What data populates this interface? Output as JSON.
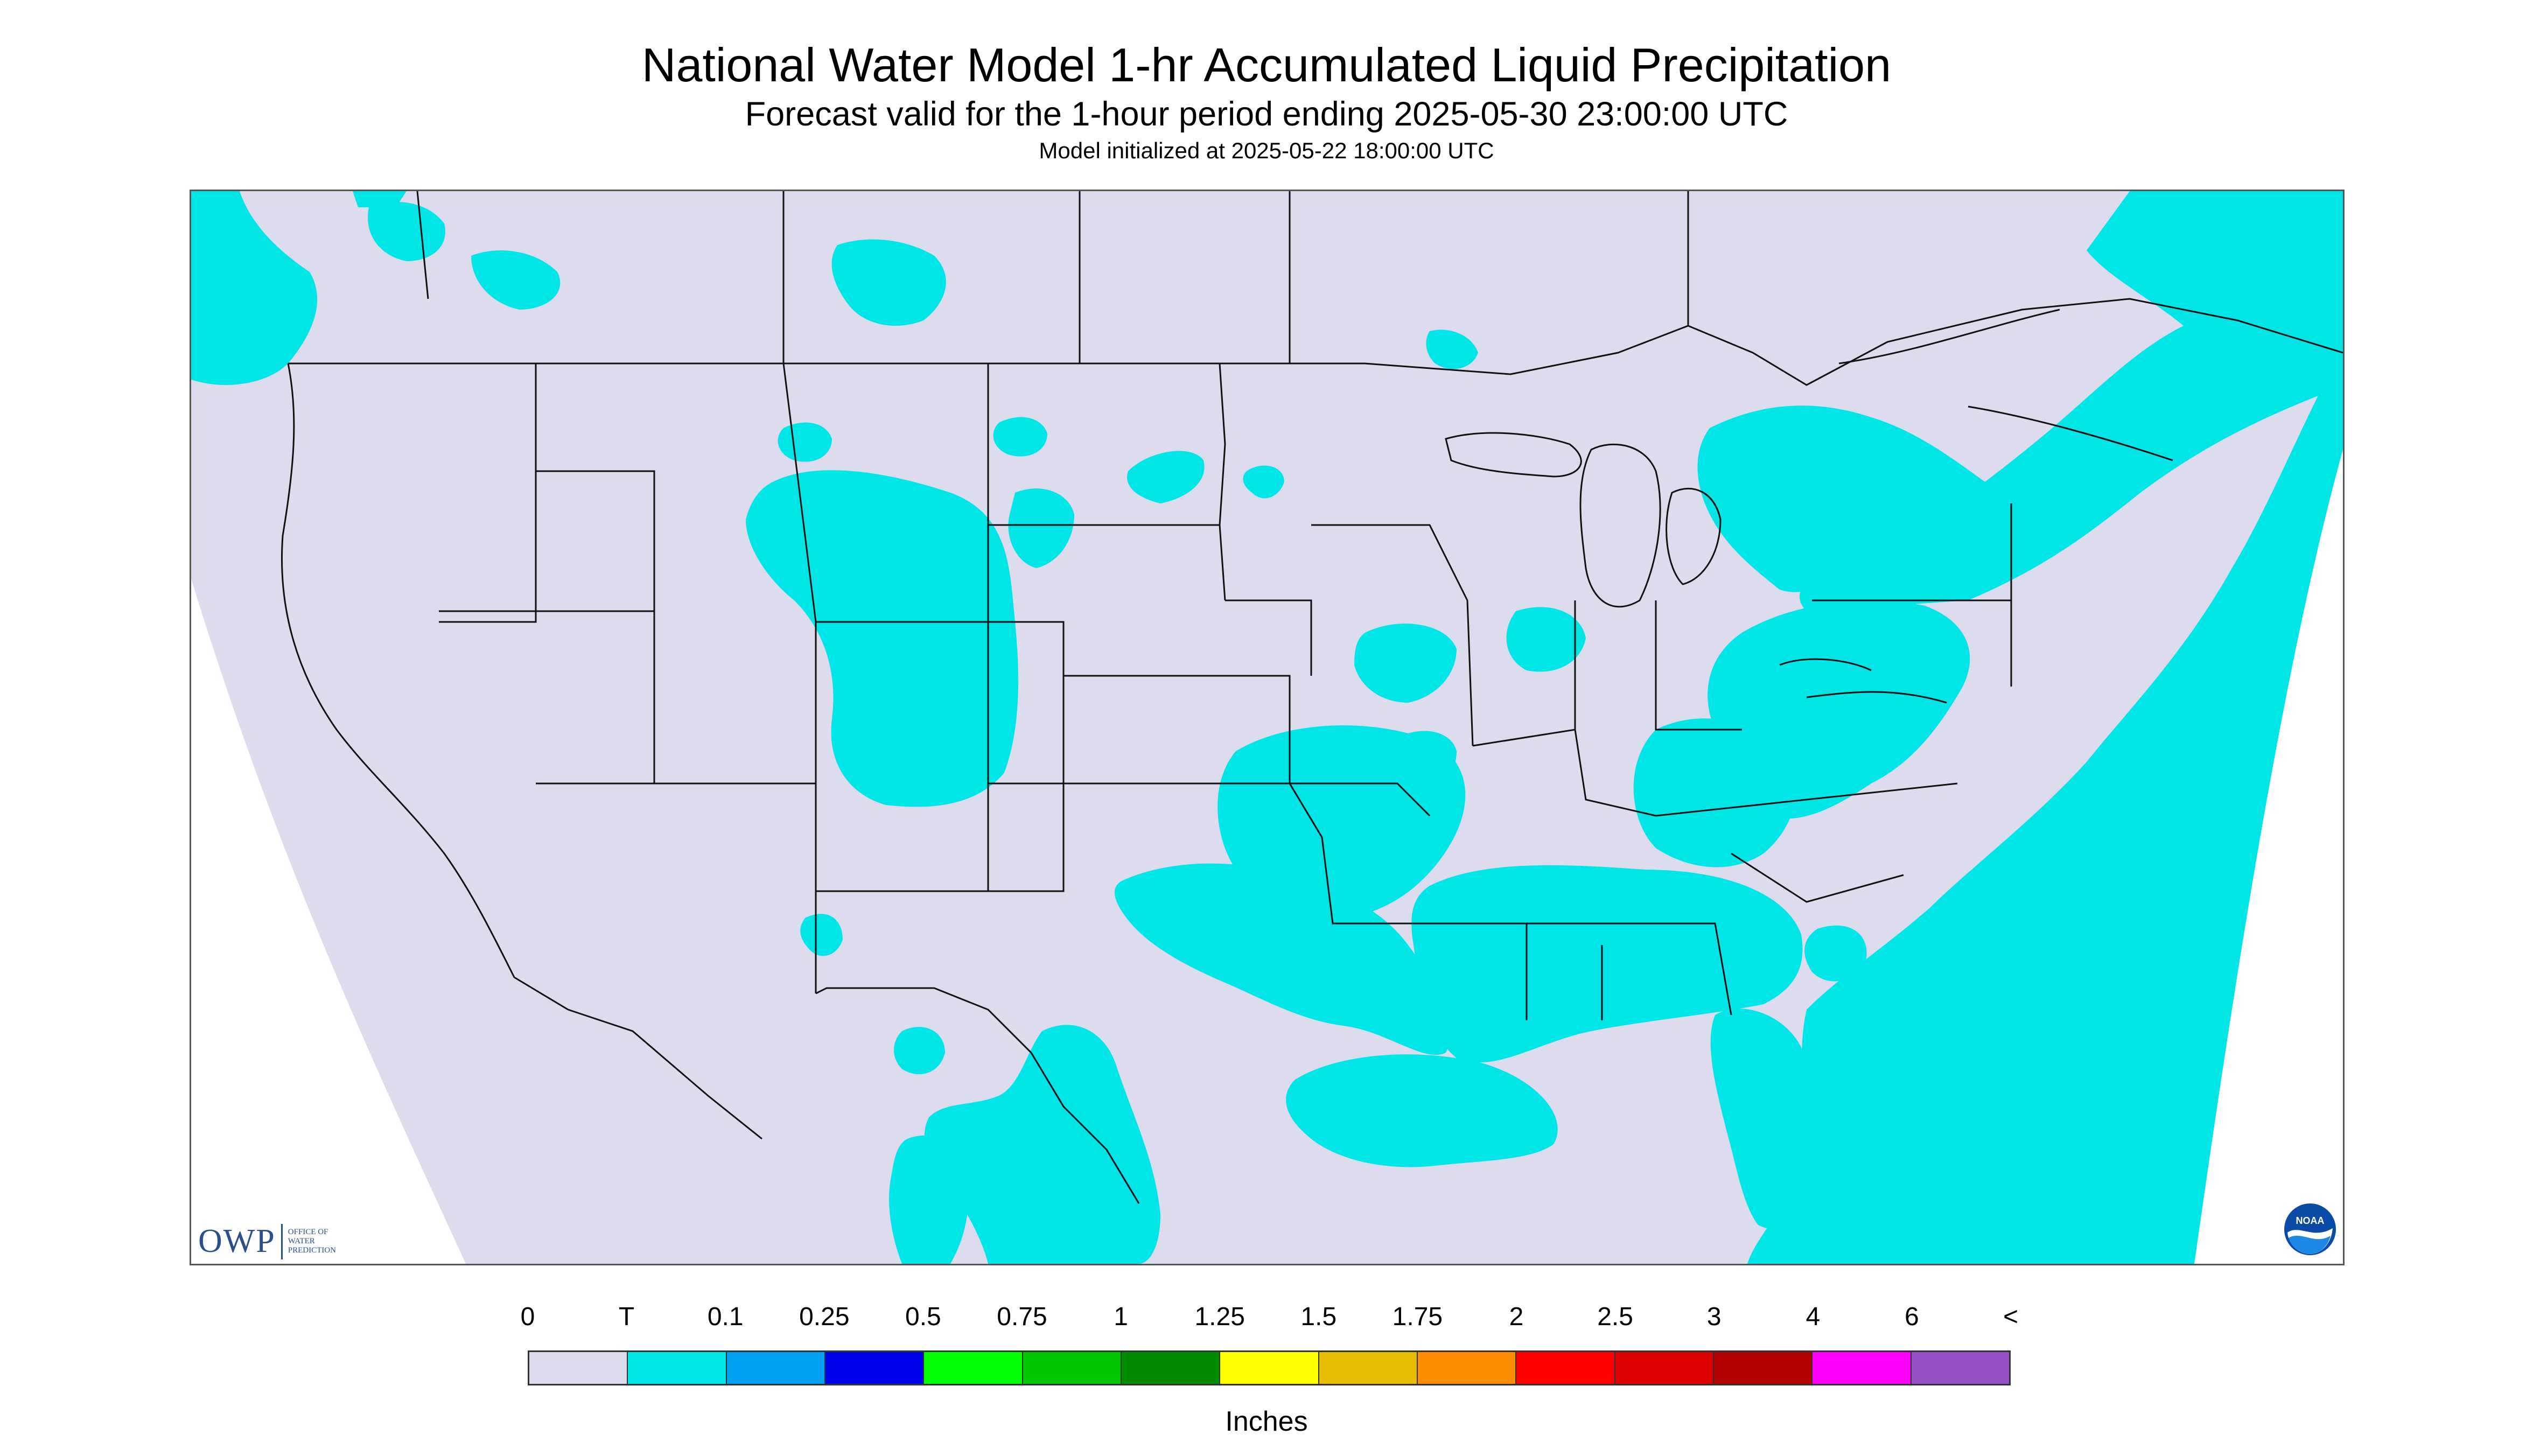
{
  "title": "National Water Model 1-hr Accumulated Liquid Precipitation",
  "subtitle": "Forecast valid for the 1-hour period ending 2025-05-30 23:00:00 UTC",
  "init_line": "Model initialized at 2025-05-22 18:00:00 UTC",
  "colors": {
    "background": "#dcdcee",
    "precip": "#00e5e5",
    "outline": "#111111",
    "frame": "#555555"
  },
  "legend": {
    "labels": [
      "0",
      "T",
      "0.1",
      "0.25",
      "0.5",
      "0.75",
      "1",
      "1.25",
      "1.5",
      "1.75",
      "2",
      "2.5",
      "3",
      "4",
      "6",
      "<"
    ],
    "colors": [
      "#dcdcee",
      "#00e5e5",
      "#00a0f0",
      "#0000f0",
      "#00ff00",
      "#00c800",
      "#008c00",
      "#ffff00",
      "#e6be00",
      "#ff8c00",
      "#ff0000",
      "#dc0000",
      "#b40000",
      "#ff00ff",
      "#9650c8"
    ],
    "units": "Inches"
  },
  "logos": {
    "owp": {
      "letters": "OWP",
      "lines": [
        "OFFICE OF",
        "WATER",
        "PREDICTION"
      ]
    },
    "noaa": {
      "letters": "NOAA",
      "icon": "noaa-logo-icon"
    }
  }
}
